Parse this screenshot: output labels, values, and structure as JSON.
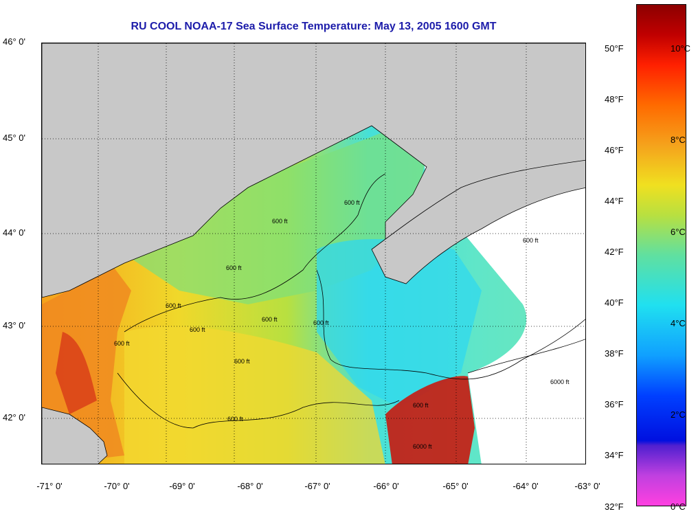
{
  "title": "RU COOL  NOAA-17  Sea Surface Temperature:  May 13, 2005 1600 GMT",
  "map": {
    "lat_labels": [
      "46° 0'",
      "45° 0'",
      "44° 0'",
      "43° 0'",
      "42° 0'"
    ],
    "lon_labels": [
      "-71° 0'",
      "-70° 0'",
      "-69° 0'",
      "-68° 0'",
      "-67° 0'",
      "-66° 0'",
      "-65° 0'",
      "-64° 0'",
      "-63° 0'"
    ],
    "contour_labels": [
      "600 ft",
      "600 ft",
      "600 ft",
      "600 ft",
      "600 ft",
      "600 ft",
      "600 ft",
      "600 ft",
      "600 ft",
      "6000 ft",
      "6000 ft",
      "600 ft",
      "600 ft",
      "600 ft"
    ],
    "colors": {
      "land": "#c8c8c8",
      "cloud": "#ffffff",
      "grid": "#000000",
      "title": "#1c1caa"
    }
  },
  "colorbar": {
    "fahrenheit_labels": [
      "50°F",
      "48°F",
      "46°F",
      "44°F",
      "42°F",
      "40°F",
      "38°F",
      "36°F",
      "34°F",
      "32°F"
    ],
    "celsius_labels": [
      "10°C",
      "8°C",
      "6°C",
      "4°C",
      "2°C",
      "0°C"
    ],
    "range_c": [
      0,
      11.5
    ]
  }
}
